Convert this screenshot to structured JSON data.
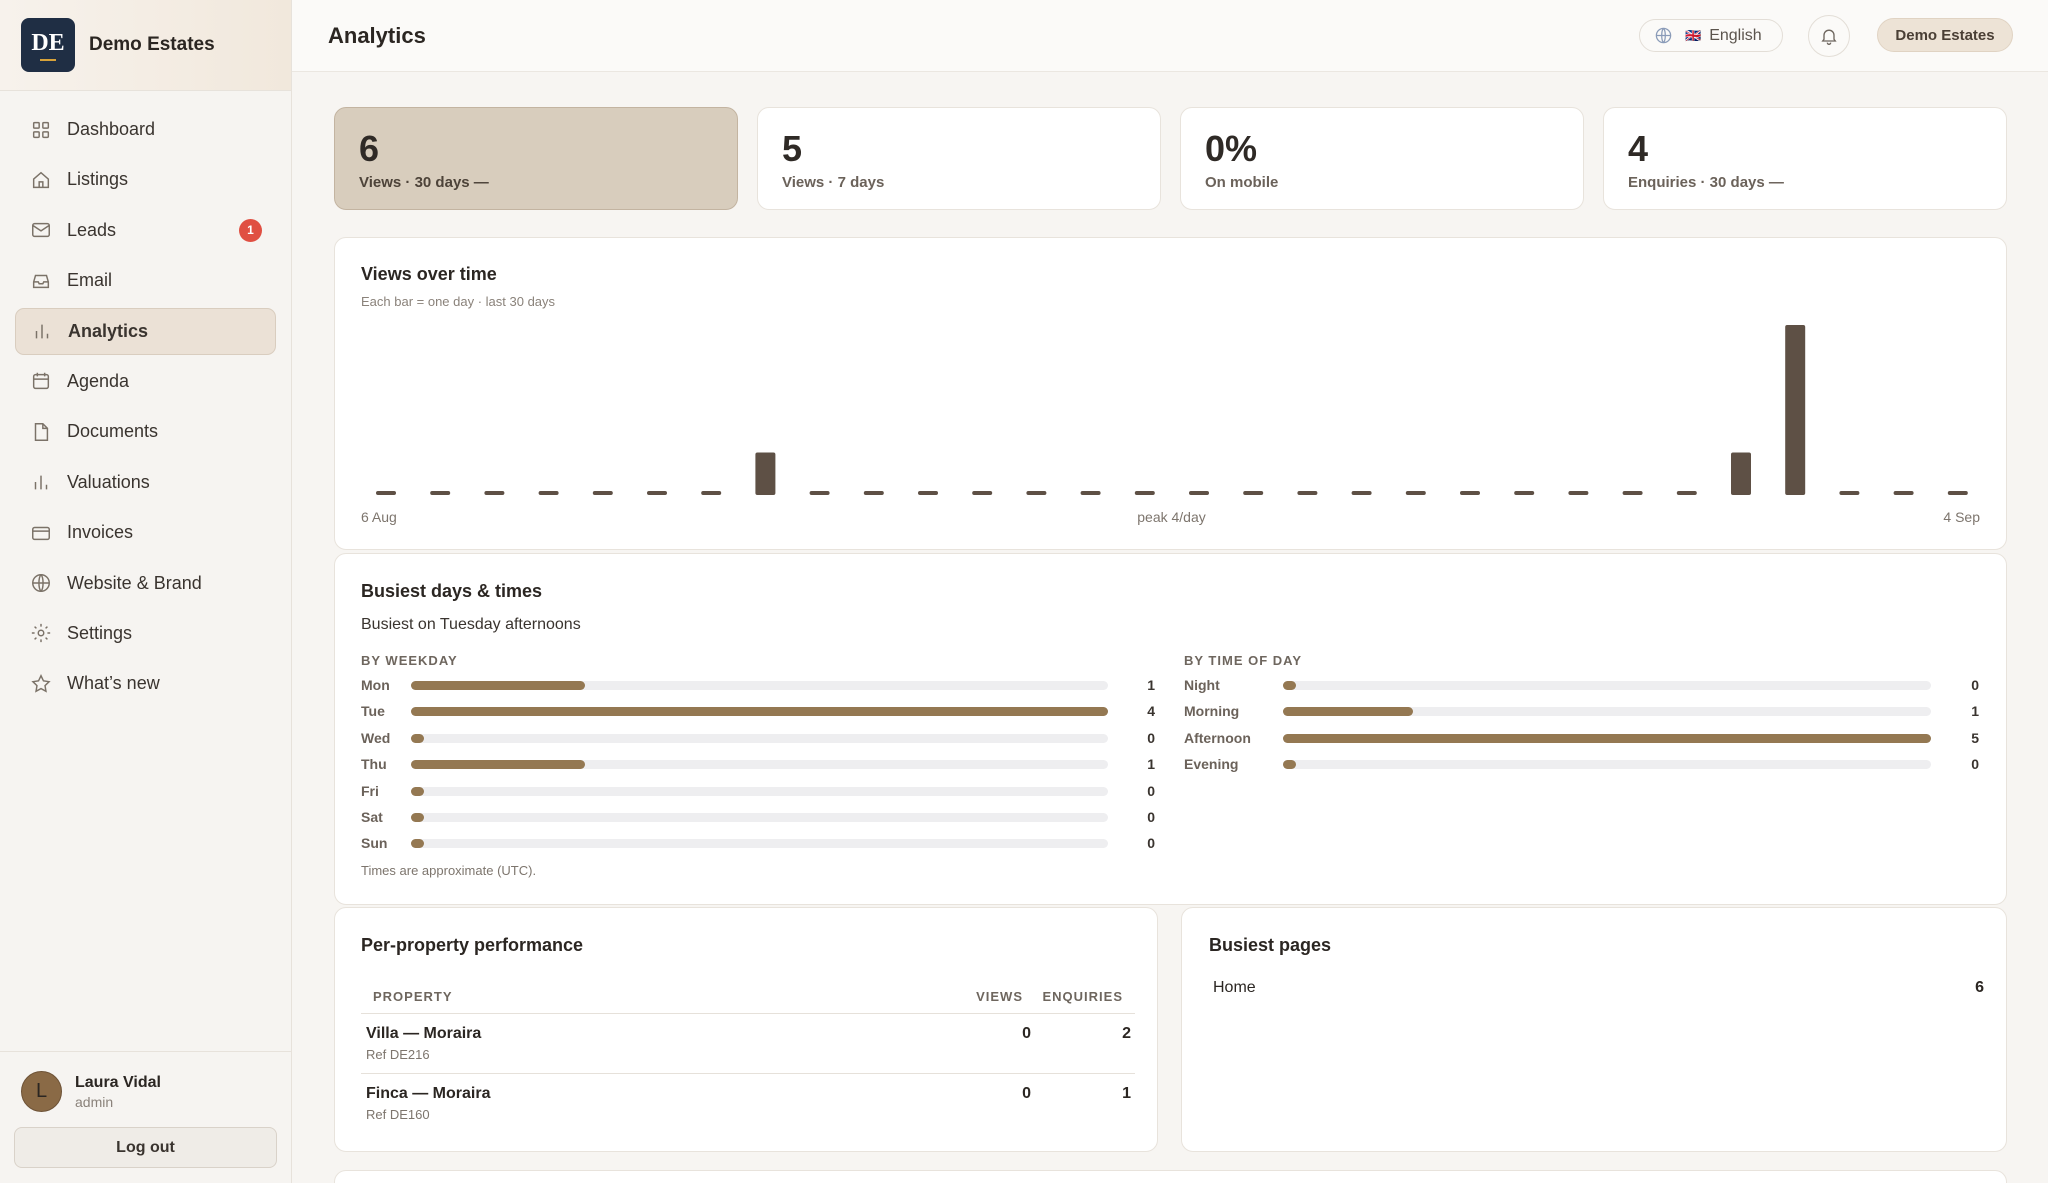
{
  "brand": {
    "logo_text": "DE",
    "name": "Demo Estates"
  },
  "nav": [
    {
      "label": "Dashboard",
      "icon": "grid-icon"
    },
    {
      "label": "Listings",
      "icon": "home-icon"
    },
    {
      "label": "Leads",
      "icon": "mail-icon",
      "badge": "1"
    },
    {
      "label": "Email",
      "icon": "inbox-icon"
    },
    {
      "label": "Analytics",
      "icon": "bar-chart-icon",
      "active": true
    },
    {
      "label": "Agenda",
      "icon": "calendar-icon"
    },
    {
      "label": "Documents",
      "icon": "document-icon"
    },
    {
      "label": "Valuations",
      "icon": "bar-chart-icon"
    },
    {
      "label": "Invoices",
      "icon": "credit-card-icon"
    },
    {
      "label": "Website & Brand",
      "icon": "globe-icon"
    },
    {
      "label": "Settings",
      "icon": "gear-icon"
    },
    {
      "label": "What’s new",
      "icon": "star-icon"
    }
  ],
  "user": {
    "initial": "L",
    "name": "Laura Vidal",
    "role": "admin",
    "logout_label": "Log out"
  },
  "header": {
    "title": "Analytics",
    "language": "English",
    "flag": "🇬🇧",
    "account": "Demo Estates"
  },
  "stats": [
    {
      "value": "6",
      "label": "Views · 30 days  —",
      "active": true
    },
    {
      "value": "5",
      "label": "Views · 7 days"
    },
    {
      "value": "0%",
      "label": "On mobile"
    },
    {
      "value": "4",
      "label": "Enquiries · 30 days  —"
    }
  ],
  "views_chart": {
    "title": "Views over time",
    "subtitle": "Each bar = one day · last 30 days",
    "start_label": "6 Aug",
    "peak_label": "peak 4/day",
    "end_label": "4 Sep"
  },
  "chart_data": {
    "type": "bar",
    "categories": [
      "6 Aug",
      "7 Aug",
      "8 Aug",
      "9 Aug",
      "10 Aug",
      "11 Aug",
      "12 Aug",
      "13 Aug",
      "14 Aug",
      "15 Aug",
      "16 Aug",
      "17 Aug",
      "18 Aug",
      "19 Aug",
      "20 Aug",
      "21 Aug",
      "22 Aug",
      "23 Aug",
      "24 Aug",
      "25 Aug",
      "26 Aug",
      "27 Aug",
      "28 Aug",
      "29 Aug",
      "30 Aug",
      "31 Aug",
      "1 Sep",
      "2 Sep",
      "3 Sep",
      "4 Sep"
    ],
    "values": [
      0,
      0,
      0,
      0,
      0,
      0,
      0,
      1,
      0,
      0,
      0,
      0,
      0,
      0,
      0,
      0,
      0,
      0,
      0,
      0,
      0,
      0,
      0,
      0,
      0,
      1,
      4,
      0,
      0,
      0
    ],
    "ylim": [
      0,
      4
    ],
    "color": "#5e5045"
  },
  "busiest": {
    "title": "Busiest days & times",
    "summary": "Busiest on Tuesday afternoons",
    "weekday_label": "BY WEEKDAY",
    "weekday": [
      {
        "label": "Mon",
        "value": 1
      },
      {
        "label": "Tue",
        "value": 4
      },
      {
        "label": "Wed",
        "value": 0
      },
      {
        "label": "Thu",
        "value": 1
      },
      {
        "label": "Fri",
        "value": 0
      },
      {
        "label": "Sat",
        "value": 0
      },
      {
        "label": "Sun",
        "value": 0
      }
    ],
    "weekday_max": 4,
    "timeofday_label": "BY TIME OF DAY",
    "timeofday": [
      {
        "label": "Night",
        "value": 0
      },
      {
        "label": "Morning",
        "value": 1
      },
      {
        "label": "Afternoon",
        "value": 5
      },
      {
        "label": "Evening",
        "value": 0
      }
    ],
    "timeofday_max": 5,
    "note": "Times are approximate (UTC)."
  },
  "properties": {
    "title": "Per-property performance",
    "columns": [
      "PROPERTY",
      "VIEWS",
      "ENQUIRIES"
    ],
    "rows": [
      {
        "name": "Villa — Moraira",
        "ref": "Ref DE216",
        "views": "0",
        "enquiries": "2"
      },
      {
        "name": "Finca — Moraira",
        "ref": "Ref DE160",
        "views": "0",
        "enquiries": "1"
      }
    ]
  },
  "pages": {
    "title": "Busiest pages",
    "rows": [
      {
        "page": "Home",
        "count": "6"
      }
    ]
  }
}
